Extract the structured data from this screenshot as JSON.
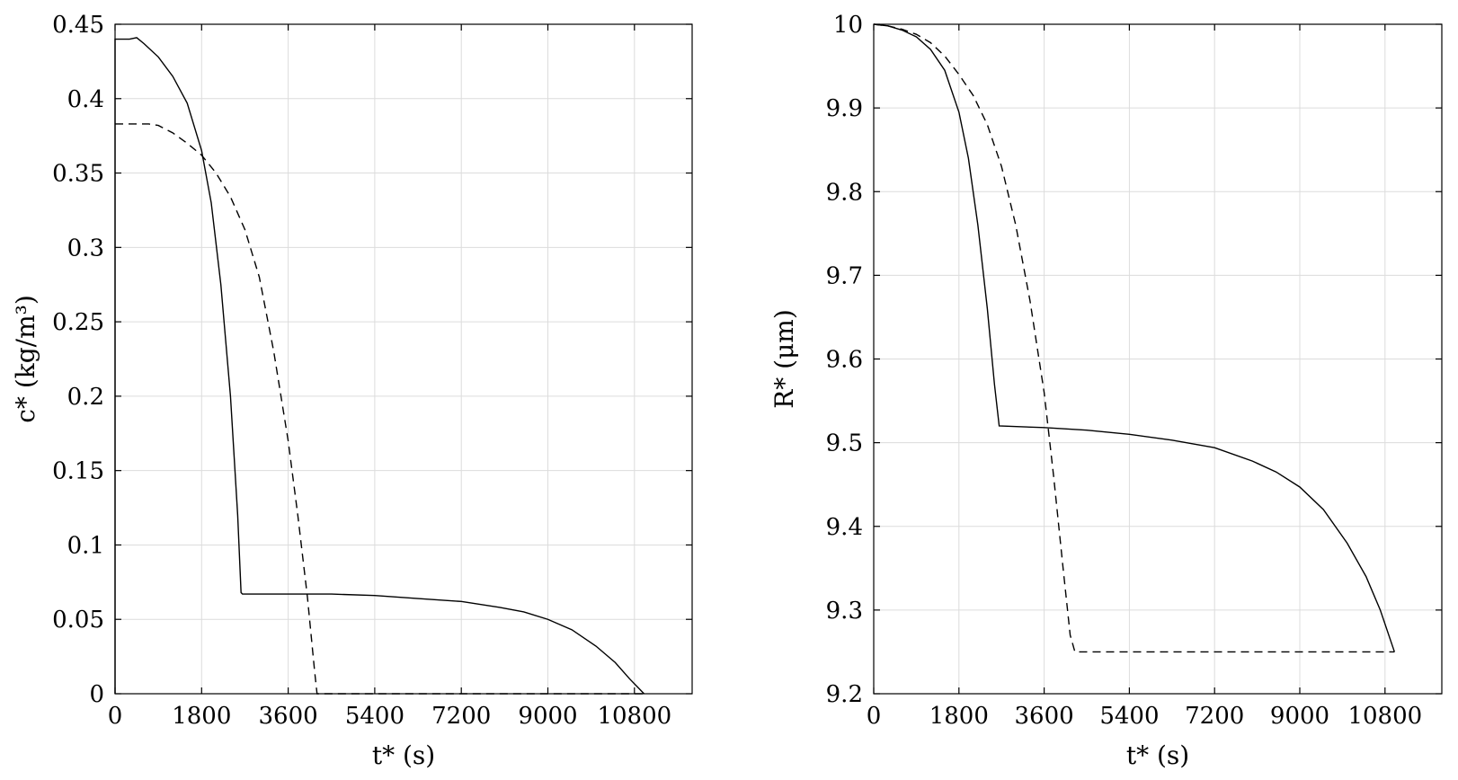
{
  "chart_data": [
    {
      "type": "line",
      "xlabel": "t* (s)",
      "ylabel": "c* (kg/m³)",
      "xlim": [
        0,
        12000
      ],
      "ylim": [
        0,
        0.45
      ],
      "xticks": [
        0,
        1800,
        3600,
        5400,
        7200,
        9000,
        10800
      ],
      "yticks": [
        0,
        0.05,
        0.1,
        0.15,
        0.2,
        0.25,
        0.3,
        0.35,
        0.4,
        0.45
      ],
      "ytick_labels": [
        "0",
        "0.05",
        "0.1",
        "0.15",
        "0.2",
        "0.25",
        "0.3",
        "0.35",
        "0.4",
        "0.45"
      ],
      "grid": true,
      "series": [
        {
          "style": "solid",
          "x": [
            0,
            0,
            100,
            300,
            450,
            600,
            900,
            1200,
            1500,
            1800,
            2000,
            2200,
            2400,
            2550,
            2620,
            2650,
            3600,
            4500,
            5400,
            6300,
            7200,
            8000,
            8500,
            9000,
            9500,
            10000,
            10400,
            10700,
            11000
          ],
          "y": [
            0,
            0.44,
            0.44,
            0.44,
            0.441,
            0.437,
            0.428,
            0.415,
            0.397,
            0.365,
            0.33,
            0.275,
            0.2,
            0.12,
            0.068,
            0.067,
            0.067,
            0.067,
            0.066,
            0.064,
            0.062,
            0.058,
            0.055,
            0.05,
            0.043,
            0.032,
            0.021,
            0.01,
            0
          ]
        },
        {
          "style": "dashed",
          "x": [
            0,
            700,
            900,
            1200,
            1500,
            1800,
            2100,
            2400,
            2700,
            3000,
            3300,
            3600,
            3800,
            4000,
            4150,
            4200,
            11000
          ],
          "y": [
            0.383,
            0.383,
            0.382,
            0.377,
            0.37,
            0.362,
            0.35,
            0.334,
            0.312,
            0.28,
            0.23,
            0.17,
            0.12,
            0.065,
            0.015,
            0,
            0
          ]
        }
      ]
    },
    {
      "type": "line",
      "xlabel": "t* (s)",
      "ylabel": "R* (μm)",
      "xlim": [
        0,
        12000
      ],
      "ylim": [
        9.2,
        10
      ],
      "xticks": [
        0,
        1800,
        3600,
        5400,
        7200,
        9000,
        10800
      ],
      "yticks": [
        9.2,
        9.3,
        9.4,
        9.5,
        9.6,
        9.7,
        9.8,
        9.9,
        10
      ],
      "ytick_labels": [
        "9.2",
        "9.3",
        "9.4",
        "9.5",
        "9.6",
        "9.7",
        "9.8",
        "9.9",
        "10"
      ],
      "grid": true,
      "series": [
        {
          "style": "solid",
          "x": [
            0,
            300,
            600,
            900,
            1200,
            1500,
            1800,
            2000,
            2200,
            2400,
            2550,
            2650,
            3600,
            4500,
            5400,
            6300,
            7200,
            8000,
            8500,
            9000,
            9500,
            10000,
            10400,
            10700,
            11000
          ],
          "y": [
            10,
            9.998,
            9.993,
            9.985,
            9.97,
            9.945,
            9.895,
            9.84,
            9.76,
            9.66,
            9.57,
            9.52,
            9.518,
            9.515,
            9.51,
            9.503,
            9.494,
            9.478,
            9.465,
            9.447,
            9.42,
            9.38,
            9.34,
            9.3,
            9.25
          ]
        },
        {
          "style": "dashed",
          "x": [
            0,
            300,
            600,
            900,
            1200,
            1500,
            1800,
            2100,
            2400,
            2700,
            3000,
            3300,
            3600,
            3800,
            4000,
            4150,
            4250,
            11000
          ],
          "y": [
            10,
            9.998,
            9.994,
            9.988,
            9.978,
            9.962,
            9.94,
            9.915,
            9.88,
            9.83,
            9.76,
            9.67,
            9.56,
            9.46,
            9.35,
            9.27,
            9.25,
            9.25
          ]
        }
      ]
    }
  ]
}
